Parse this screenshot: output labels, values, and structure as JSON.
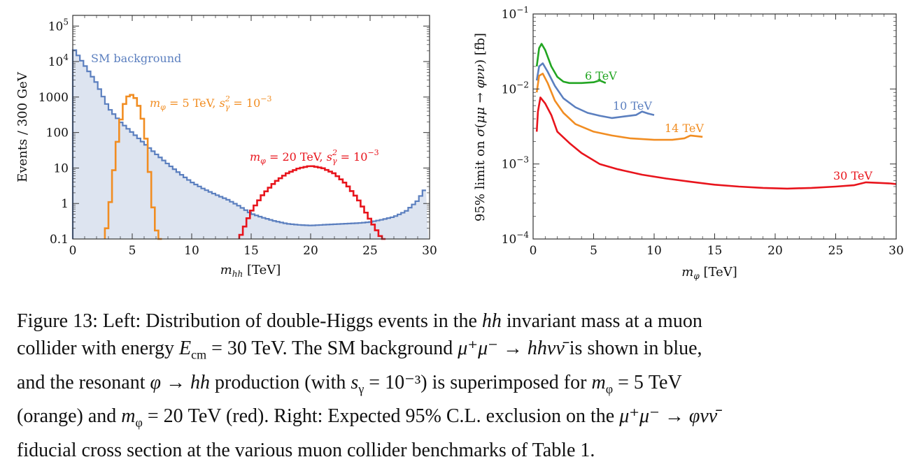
{
  "chart_data": [
    {
      "type": "histogram",
      "ylabel": "Events / 300 GeV",
      "xlabel": "m_hh [TeV]",
      "xlim": [
        0,
        30
      ],
      "ylim": [
        0.1,
        200000
      ],
      "yscale": "log",
      "xticks": [
        0,
        5,
        10,
        15,
        20,
        25,
        30
      ],
      "yticks": [
        {
          "value": 0.1,
          "label": "0.1"
        },
        {
          "value": 1,
          "label": "1"
        },
        {
          "value": 10,
          "label": "10"
        },
        {
          "value": 100,
          "label": "100"
        },
        {
          "value": 1000,
          "label": "1000"
        },
        {
          "value": 10000,
          "label": "10^4"
        },
        {
          "value": 100000,
          "label": "10^5"
        }
      ],
      "series": [
        {
          "name": "SM background",
          "color": "#5b7fbf",
          "fill": "#dde4f0",
          "bin_width": 0.3,
          "x": [
            0,
            2,
            3,
            4,
            5,
            6,
            7,
            8,
            9,
            10,
            11,
            12,
            13,
            14,
            15,
            16,
            17,
            18,
            19,
            20,
            21,
            22,
            23,
            24,
            25,
            26,
            27,
            28,
            29,
            29.6
          ],
          "y": [
            25000,
            2500,
            500,
            200,
            100,
            50,
            25,
            13,
            7,
            4,
            2.6,
            1.8,
            1.3,
            0.85,
            0.52,
            0.4,
            0.32,
            0.27,
            0.25,
            0.24,
            0.25,
            0.26,
            0.27,
            0.28,
            0.3,
            0.35,
            0.42,
            0.6,
            1.2,
            2.5
          ]
        },
        {
          "name": "m_φ = 5 TeV, s_γ^2 = 10^-3",
          "color": "#f18d22",
          "x": [
            2.7,
            3.0,
            3.3,
            3.6,
            3.9,
            4.2,
            4.5,
            4.8,
            5.1,
            5.4,
            5.7,
            6.0,
            6.3,
            6.6,
            6.9,
            7.2
          ],
          "y": [
            0.1,
            0.4,
            3,
            25,
            120,
            450,
            900,
            1200,
            1100,
            800,
            400,
            150,
            30,
            2,
            0.3,
            0.1
          ]
        },
        {
          "name": "m_φ = 20 TeV, s_γ^2 = 10^-3",
          "color": "#e8141c",
          "x": [
            14.0,
            15.0,
            16.0,
            17.0,
            18.0,
            19.0,
            20.0,
            21.0,
            22.0,
            23.0,
            24.0,
            25.0,
            26.0
          ],
          "y": [
            0.1,
            0.6,
            1.8,
            4.0,
            7.0,
            9.8,
            11.5,
            10.0,
            7.0,
            3.5,
            1.3,
            0.35,
            0.1
          ]
        }
      ]
    },
    {
      "type": "line",
      "ylabel": "95% limit on σ(μμ → φνν) [fb]",
      "xlabel": "m_φ [TeV]",
      "xlim": [
        0,
        30
      ],
      "ylim": [
        0.0001,
        0.1
      ],
      "yscale": "log",
      "xticks": [
        0,
        5,
        10,
        15,
        20,
        25,
        30
      ],
      "yticks": [
        {
          "value": 0.0001,
          "label": "10^-4"
        },
        {
          "value": 0.001,
          "label": "10^-3"
        },
        {
          "value": 0.01,
          "label": "10^-2"
        },
        {
          "value": 0.1,
          "label": "10^-1"
        }
      ],
      "series": [
        {
          "name": "6 TeV",
          "color": "#22a522",
          "x": [
            0.3,
            0.5,
            0.7,
            1.0,
            1.5,
            2.0,
            2.5,
            3.0,
            4.0,
            5.0,
            5.5,
            6.0
          ],
          "y": [
            0.02,
            0.035,
            0.04,
            0.033,
            0.02,
            0.0145,
            0.0125,
            0.012,
            0.012,
            0.0123,
            0.013,
            0.012
          ]
        },
        {
          "name": "10 TeV",
          "color": "#5b7fbf",
          "x": [
            0.3,
            0.5,
            0.8,
            1.2,
            1.8,
            2.5,
            3.5,
            4.5,
            5.5,
            6.5,
            7.5,
            8.5,
            9.0,
            9.5,
            10.0
          ],
          "y": [
            0.013,
            0.02,
            0.022,
            0.017,
            0.011,
            0.0075,
            0.0057,
            0.0048,
            0.0044,
            0.0041,
            0.0043,
            0.0045,
            0.005,
            0.0047,
            0.0045
          ]
        },
        {
          "name": "14 TeV",
          "color": "#f18d22",
          "x": [
            0.3,
            0.5,
            0.8,
            1.2,
            1.8,
            2.5,
            3.5,
            5,
            6.5,
            8,
            10,
            11.5,
            12.5,
            13.0,
            14.0
          ],
          "y": [
            0.009,
            0.015,
            0.016,
            0.012,
            0.007,
            0.0048,
            0.0034,
            0.0027,
            0.0024,
            0.0022,
            0.0021,
            0.0021,
            0.0022,
            0.0024,
            0.0023
          ]
        },
        {
          "name": "30 TeV",
          "color": "#e8141c",
          "x": [
            0.3,
            0.4,
            0.6,
            1.0,
            1.5,
            2.0,
            3.0,
            4.0,
            5.5,
            7,
            9,
            11,
            13,
            15,
            17,
            19,
            21,
            23,
            25,
            26.5,
            27.5,
            28.5,
            29.5,
            30
          ],
          "y": [
            0.0027,
            0.005,
            0.0077,
            0.0064,
            0.0045,
            0.0027,
            0.0019,
            0.0014,
            0.001,
            0.00085,
            0.00072,
            0.00064,
            0.00058,
            0.00053,
            0.0005,
            0.00048,
            0.00047,
            0.00048,
            0.0005,
            0.00052,
            0.00057,
            0.00056,
            0.00055,
            0.00054
          ]
        }
      ]
    }
  ],
  "caption": {
    "l1a": "Figure 13:  Left:  Distribution of double-Higgs events in the ",
    "l1b": "hh",
    "l1c": " invariant mass at a muon",
    "l2a": "collider with energy ",
    "l2b": "E",
    "l2c": "cm",
    "l2d": " = 30 TeV. The SM background ",
    "l2e": "μ⁺μ⁻ → hhνν̄",
    "l2f": " is shown in blue,",
    "l3a": "and the resonant ",
    "l3b": "φ → hh",
    "l3c": " production (with ",
    "l3d": "s",
    "l3e": "γ",
    "l3f": " = 10⁻³) is superimposed for ",
    "l3g": "m",
    "l3h": "φ",
    "l3i": " = 5 TeV",
    "l4a": "(orange) and ",
    "l4b": "m",
    "l4c": "φ",
    "l4d": " = 20 TeV (red).  Right:  Expected 95% C.L. exclusion on the ",
    "l4e": "μ⁺μ⁻ → φνν̄",
    "l5": "fiducial cross section at the various muon collider benchmarks of Table 1."
  }
}
